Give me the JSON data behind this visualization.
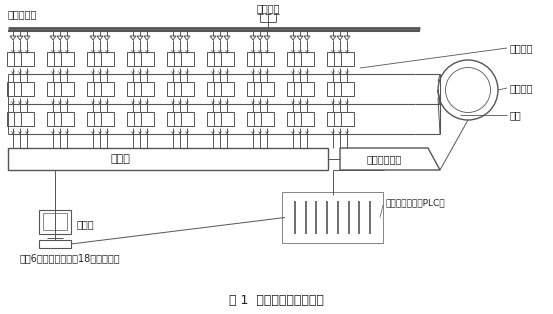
{
  "title": "图 1  变频调速系统的结构",
  "title_fontsize": 9,
  "bg_color": "#ffffff",
  "line_color": "#555555",
  "label_color": "#222222",
  "labels": {
    "yixiangbianyaqi": "移相变压器",
    "sanxiangdianwang": "三相电网",
    "gonglvdanyuan": "功率单元",
    "yibudianji": "异步电机",
    "guangxian": "光纤",
    "kongzhiqi": "控制器",
    "duli_kongzhi": "独立控制电源",
    "gongkongji": "工控机",
    "plc": "可编程控制器（PLC）",
    "meixiang": "每相6个功率单元，共18个功率单元"
  },
  "fig_width": 5.53,
  "fig_height": 3.14,
  "dpi": 100
}
